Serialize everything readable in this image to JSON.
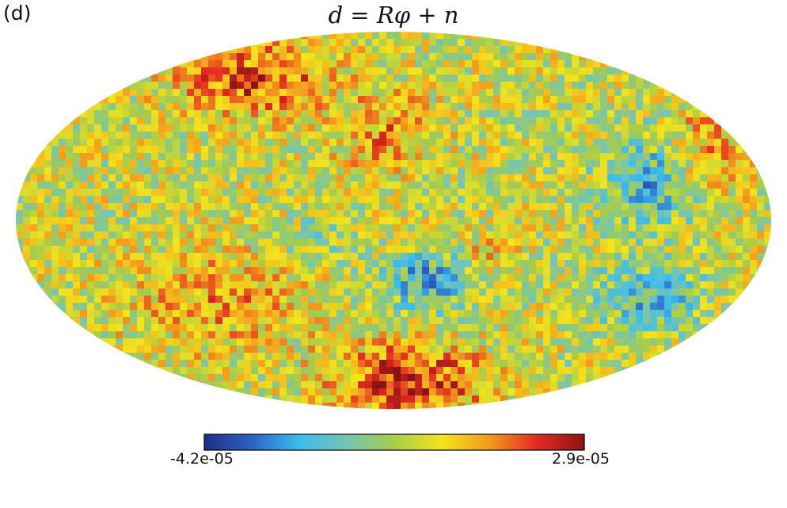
{
  "panel_label": "(d)",
  "title": "d = Rφ + n",
  "map": {
    "projection": "mollweide",
    "colormap": "jet",
    "features": {
      "hot_spots": [
        "upper-left",
        "bottom-center",
        "upper-center",
        "right-edge"
      ],
      "cold_spots": [
        "center",
        "right-middle",
        "lower-right"
      ]
    }
  },
  "colorbar": {
    "min_label": "-4.2e-05",
    "max_label": "2.9e-05",
    "min": -4.2e-05,
    "max": 2.9e-05,
    "colors": [
      "#1f2f86",
      "#2b63c4",
      "#3cbcef",
      "#74c5b5",
      "#a8cc4a",
      "#f3e41c",
      "#f39a1d",
      "#e42a21",
      "#8a1414"
    ]
  }
}
